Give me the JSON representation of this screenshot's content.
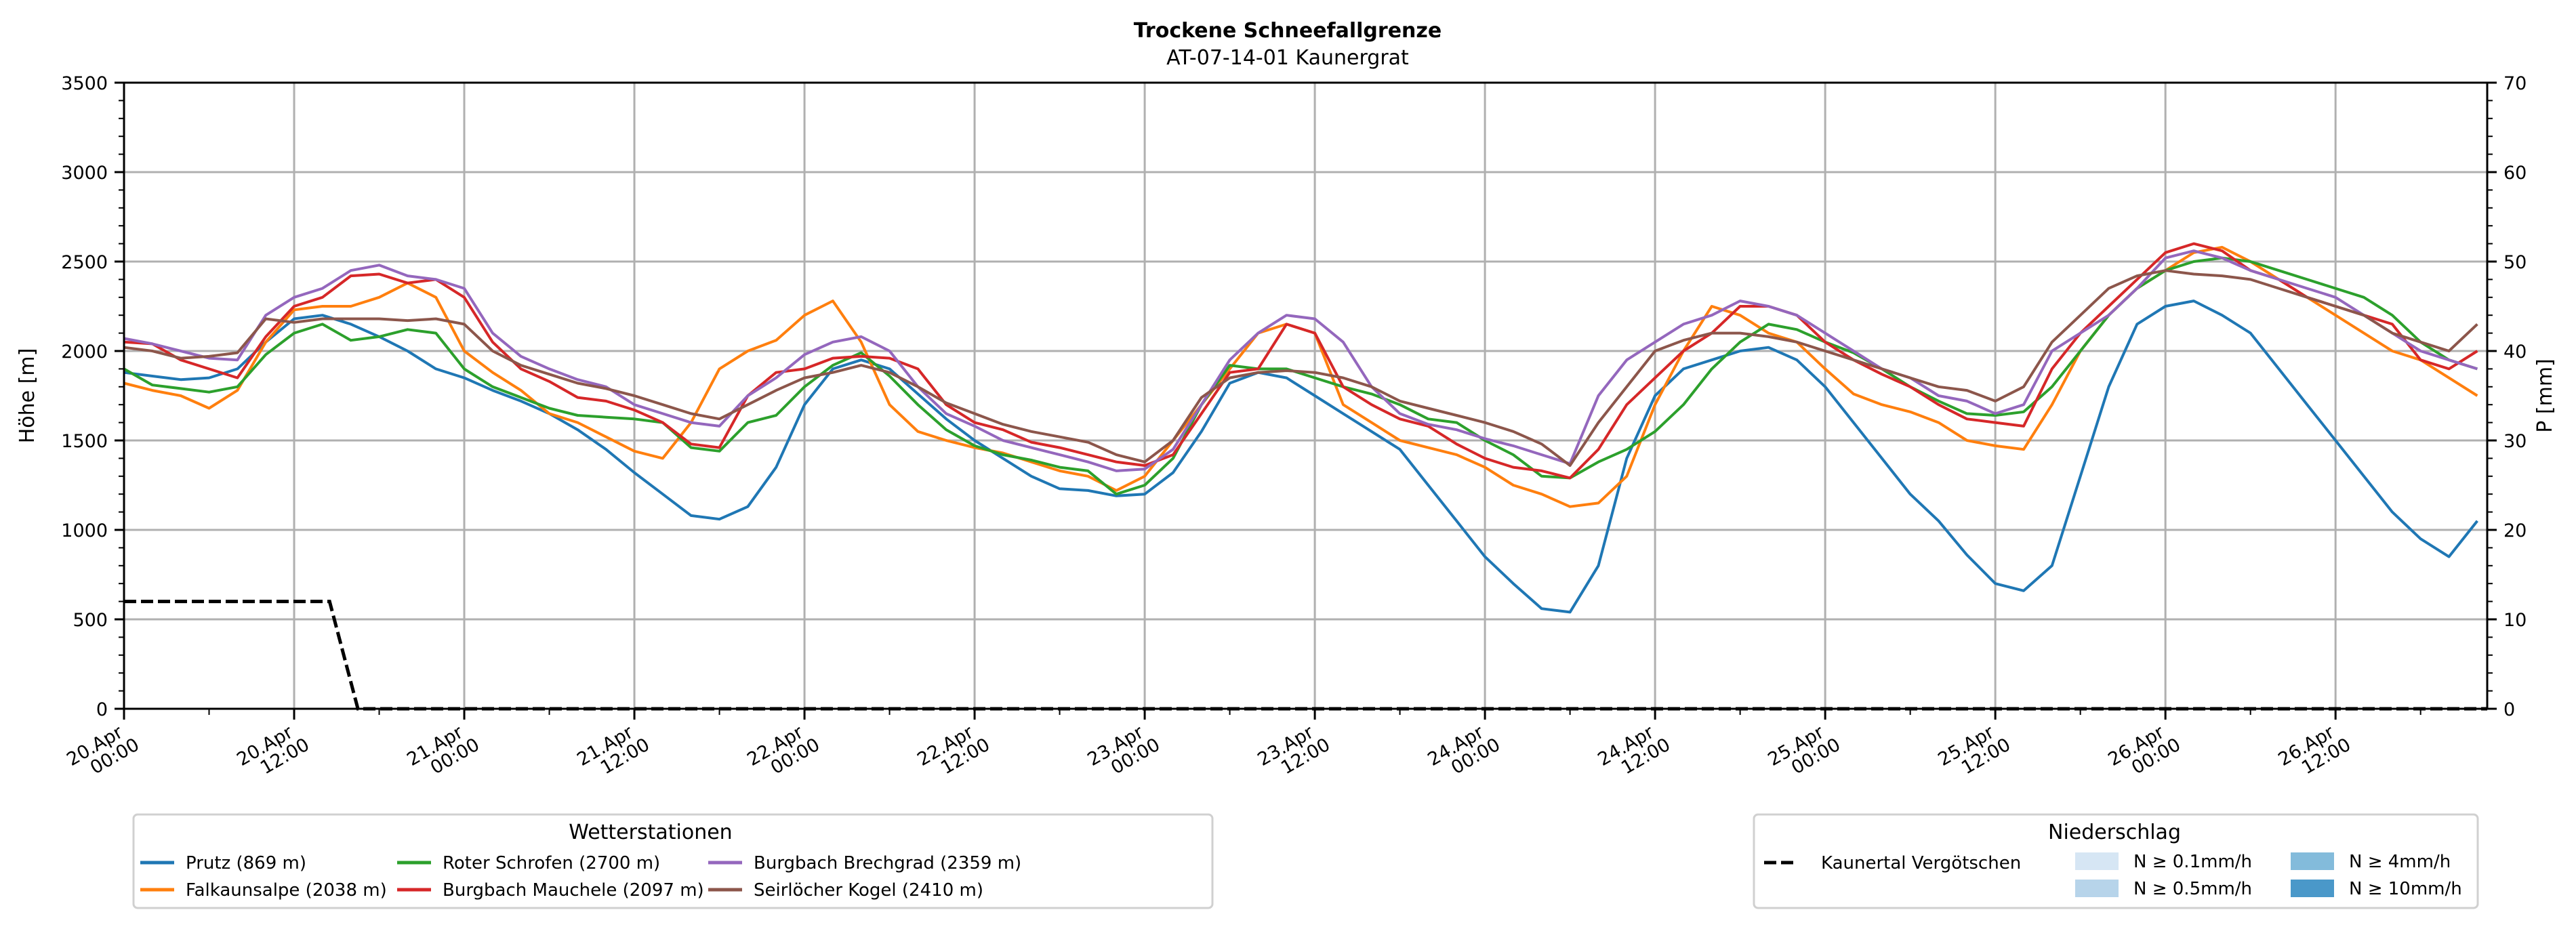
{
  "chart_data": {
    "type": "line",
    "title": "Trockene Schneefallgrenze",
    "subtitle": "AT-07-14-01 Kaunergrat",
    "ylabel": "Höhe [m]",
    "ylabel_right": "P [mm]",
    "ylim": [
      0,
      3500
    ],
    "ylim_right": [
      0,
      70
    ],
    "yticks": [
      "0",
      "500",
      "1000",
      "1500",
      "2000",
      "2500",
      "3000",
      "3500"
    ],
    "yticks_right": [
      "0",
      "10",
      "20",
      "30",
      "40",
      "50",
      "60",
      "70"
    ],
    "xlim_hours": [
      0,
      166.7
    ],
    "xticks": [
      {
        "h": 0,
        "line1": "20.Apr",
        "line2": "00:00"
      },
      {
        "h": 12,
        "line1": "20.Apr",
        "line2": "12:00"
      },
      {
        "h": 24,
        "line1": "21.Apr",
        "line2": "00:00"
      },
      {
        "h": 36,
        "line1": "21.Apr",
        "line2": "12:00"
      },
      {
        "h": 48,
        "line1": "22.Apr",
        "line2": "00:00"
      },
      {
        "h": 60,
        "line1": "22.Apr",
        "line2": "12:00"
      },
      {
        "h": 72,
        "line1": "23.Apr",
        "line2": "00:00"
      },
      {
        "h": 84,
        "line1": "23.Apr",
        "line2": "12:00"
      },
      {
        "h": 96,
        "line1": "24.Apr",
        "line2": "00:00"
      },
      {
        "h": 108,
        "line1": "24.Apr",
        "line2": "12:00"
      },
      {
        "h": 120,
        "line1": "25.Apr",
        "line2": "00:00"
      },
      {
        "h": 132,
        "line1": "25.Apr",
        "line2": "12:00"
      },
      {
        "h": 144,
        "line1": "26.Apr",
        "line2": "00:00"
      },
      {
        "h": 156,
        "line1": "26.Apr",
        "line2": "12:00"
      }
    ],
    "grid": true,
    "x_step_hours": 2,
    "series": [
      {
        "name": "Prutz (869 m)",
        "color": "#1f77b4",
        "values": [
          1880,
          1860,
          1840,
          1850,
          1900,
          2050,
          2180,
          2200,
          2150,
          2080,
          2000,
          1900,
          1850,
          1780,
          1720,
          1650,
          1560,
          1450,
          1320,
          1200,
          1080,
          1060,
          1130,
          1350,
          1700,
          1900,
          1950,
          1900,
          1760,
          1620,
          1500,
          1400,
          1300,
          1230,
          1220,
          1190,
          1200,
          1320,
          1550,
          1820,
          1880,
          1850,
          1750,
          1650,
          1550,
          1450,
          1250,
          1050,
          850,
          700,
          560,
          540,
          800,
          1400,
          1750,
          1900,
          1950,
          2000,
          2020,
          1950,
          1800,
          1600,
          1400,
          1200,
          1050,
          860,
          700,
          660,
          800,
          1300,
          1800,
          2150,
          2250,
          2280,
          2200,
          2100,
          1900,
          1700,
          1500,
          1300,
          1100,
          950,
          850,
          1050
        ]
      },
      {
        "name": "Falkaunsalpe (2038 m)",
        "color": "#ff7f0e",
        "values": [
          1820,
          1780,
          1750,
          1680,
          1780,
          2050,
          2230,
          2250,
          2250,
          2300,
          2380,
          2300,
          2000,
          1880,
          1780,
          1650,
          1600,
          1520,
          1440,
          1400,
          1600,
          1900,
          2000,
          2060,
          2200,
          2280,
          2050,
          1700,
          1550,
          1500,
          1460,
          1430,
          1380,
          1330,
          1300,
          1220,
          1300,
          1500,
          1700,
          1900,
          2100,
          2150,
          2100,
          1700,
          1600,
          1500,
          1460,
          1420,
          1350,
          1250,
          1200,
          1130,
          1150,
          1300,
          1700,
          2000,
          2250,
          2200,
          2100,
          2050,
          1900,
          1760,
          1700,
          1660,
          1600,
          1500,
          1470,
          1450,
          1700,
          2000,
          2200,
          2350,
          2450,
          2550,
          2580,
          2500,
          2400,
          2300,
          2200,
          2100,
          2000,
          1950,
          1850,
          1750
        ]
      },
      {
        "name": "Roter Schrofen (2700 m)",
        "color": "#2ca02c",
        "values": [
          1900,
          1810,
          1790,
          1770,
          1800,
          1980,
          2100,
          2150,
          2060,
          2080,
          2120,
          2100,
          1900,
          1800,
          1740,
          1680,
          1640,
          1630,
          1620,
          1600,
          1460,
          1440,
          1600,
          1640,
          1800,
          1920,
          1990,
          1860,
          1700,
          1560,
          1470,
          1420,
          1390,
          1350,
          1330,
          1200,
          1250,
          1400,
          1700,
          1920,
          1900,
          1900,
          1850,
          1800,
          1760,
          1700,
          1620,
          1600,
          1500,
          1420,
          1300,
          1290,
          1380,
          1450,
          1550,
          1700,
          1900,
          2050,
          2150,
          2120,
          2050,
          1990,
          1900,
          1800,
          1720,
          1650,
          1640,
          1660,
          1800,
          2000,
          2200,
          2350,
          2450,
          2500,
          2520,
          2500,
          2450,
          2400,
          2350,
          2300,
          2200,
          2050,
          1950,
          1900
        ]
      },
      {
        "name": "Burgbach Mauchele (2097 m)",
        "color": "#d62728",
        "values": [
          2050,
          2040,
          1950,
          1900,
          1850,
          2080,
          2250,
          2300,
          2420,
          2430,
          2380,
          2400,
          2300,
          2050,
          1900,
          1830,
          1740,
          1720,
          1670,
          1600,
          1480,
          1460,
          1750,
          1880,
          1900,
          1960,
          1970,
          1960,
          1900,
          1700,
          1600,
          1560,
          1490,
          1460,
          1420,
          1380,
          1360,
          1420,
          1650,
          1880,
          1900,
          2150,
          2100,
          1800,
          1700,
          1620,
          1580,
          1480,
          1400,
          1350,
          1330,
          1290,
          1450,
          1700,
          1850,
          2000,
          2100,
          2250,
          2250,
          2200,
          2050,
          1950,
          1870,
          1800,
          1700,
          1620,
          1600,
          1580,
          1900,
          2100,
          2250,
          2400,
          2550,
          2600,
          2560,
          2450,
          2400,
          2300,
          2250,
          2200,
          2150,
          1950,
          1900,
          2000
        ]
      },
      {
        "name": "Burgbach Brechgrad (2359 m)",
        "color": "#9467bd",
        "values": [
          2070,
          2040,
          2000,
          1960,
          1950,
          2200,
          2300,
          2350,
          2450,
          2480,
          2420,
          2400,
          2350,
          2100,
          1970,
          1900,
          1840,
          1800,
          1700,
          1650,
          1600,
          1580,
          1750,
          1850,
          1980,
          2050,
          2080,
          2000,
          1800,
          1650,
          1580,
          1500,
          1460,
          1420,
          1380,
          1330,
          1340,
          1450,
          1700,
          1950,
          2100,
          2200,
          2180,
          2050,
          1800,
          1650,
          1590,
          1560,
          1510,
          1470,
          1420,
          1370,
          1750,
          1950,
          2050,
          2150,
          2200,
          2280,
          2250,
          2200,
          2100,
          2000,
          1900,
          1850,
          1750,
          1720,
          1650,
          1700,
          2000,
          2100,
          2200,
          2350,
          2520,
          2560,
          2520,
          2450,
          2400,
          2350,
          2300,
          2200,
          2100,
          2000,
          1950,
          1900
        ]
      },
      {
        "name": "Seirlöcher Kogel (2410 m)",
        "color": "#8c564b",
        "values": [
          2020,
          2000,
          1960,
          1970,
          1990,
          2180,
          2160,
          2180,
          2180,
          2180,
          2170,
          2180,
          2150,
          2000,
          1920,
          1870,
          1820,
          1790,
          1750,
          1700,
          1650,
          1620,
          1700,
          1780,
          1850,
          1880,
          1920,
          1880,
          1800,
          1710,
          1650,
          1590,
          1550,
          1520,
          1490,
          1420,
          1380,
          1500,
          1740,
          1850,
          1880,
          1890,
          1880,
          1850,
          1800,
          1720,
          1680,
          1640,
          1600,
          1550,
          1480,
          1360,
          1600,
          1800,
          2000,
          2060,
          2100,
          2100,
          2080,
          2050,
          2000,
          1950,
          1900,
          1850,
          1800,
          1780,
          1720,
          1800,
          2050,
          2200,
          2350,
          2420,
          2450,
          2430,
          2420,
          2400,
          2350,
          2300,
          2250,
          2200,
          2100,
          2050,
          2000,
          2150
        ]
      }
    ],
    "dashed_series": {
      "name": "Kaunertal Vergötschen",
      "color": "#000000",
      "axis": "right",
      "points": [
        [
          0,
          12
        ],
        [
          14.5,
          12
        ],
        [
          16.5,
          0
        ],
        [
          166.7,
          0
        ]
      ]
    },
    "legend_stations": {
      "title": "Wetterstationen",
      "placement": "bottom-left"
    },
    "legend_precip": {
      "title": "Niederschlag",
      "placement": "bottom-right",
      "line_label": "Kaunertal Vergötschen",
      "boxes": [
        {
          "label": "N ≥ 0.1mm/h",
          "color": "#d6e6f4"
        },
        {
          "label": "N ≥ 0.5mm/h",
          "color": "#b7d4ea"
        },
        {
          "label": "N ≥ 4mm/h",
          "color": "#83bbdb"
        },
        {
          "label": "N ≥ 10mm/h",
          "color": "#4a98c9"
        }
      ]
    }
  }
}
